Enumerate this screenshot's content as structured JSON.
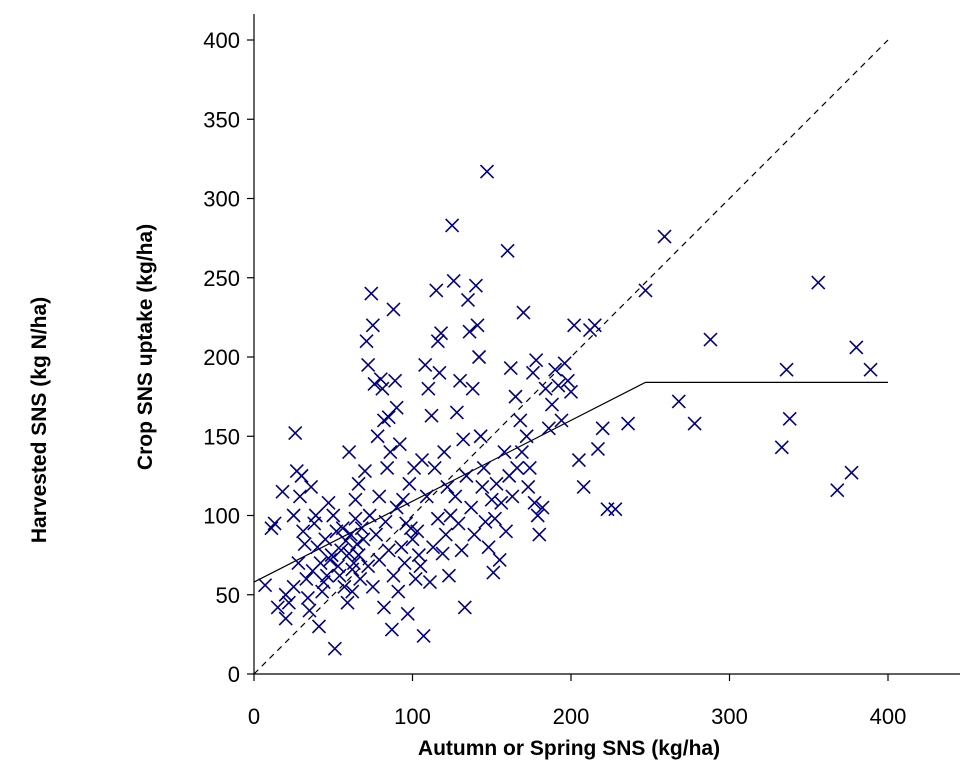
{
  "chart_data": {
    "type": "scatter",
    "title": "",
    "xlabel": "Autumn or Spring SNS (kg/ha)",
    "ylabel": "Crop SNS uptake (kg/ha)",
    "ylabel_outer": "Harvested SNS (kg N/ha)",
    "xlim": [
      0,
      450
    ],
    "ylim": [
      0,
      450
    ],
    "xticks": [
      0,
      100,
      200,
      300,
      400
    ],
    "yticks": [
      0,
      50,
      100,
      150,
      200,
      250,
      300,
      350,
      400
    ],
    "grid": false,
    "legend": "none",
    "marker_color": "#000080",
    "reference_lines": [
      {
        "style": "dashed",
        "points": [
          [
            0,
            0
          ],
          [
            400,
            400
          ]
        ]
      },
      {
        "style": "solid",
        "points": [
          [
            0,
            58
          ],
          [
            247,
            184
          ],
          [
            400,
            184
          ]
        ]
      }
    ],
    "series": [
      {
        "marker": "x",
        "points": [
          [
            7,
            56
          ],
          [
            11,
            92
          ],
          [
            13,
            95
          ],
          [
            15,
            42
          ],
          [
            18,
            115
          ],
          [
            20,
            50
          ],
          [
            22,
            45
          ],
          [
            25,
            100
          ],
          [
            26,
            152
          ],
          [
            27,
            128
          ],
          [
            29,
            112
          ],
          [
            30,
            125
          ],
          [
            31,
            90
          ],
          [
            33,
            60
          ],
          [
            35,
            40
          ],
          [
            36,
            118
          ],
          [
            38,
            95
          ],
          [
            40,
            80
          ],
          [
            42,
            70
          ],
          [
            43,
            52
          ],
          [
            45,
            85
          ],
          [
            46,
            62
          ],
          [
            48,
            72
          ],
          [
            50,
            100
          ],
          [
            52,
            90
          ],
          [
            53,
            68
          ],
          [
            55,
            78
          ],
          [
            56,
            92
          ],
          [
            57,
            55
          ],
          [
            58,
            84
          ],
          [
            60,
            76
          ],
          [
            61,
            88
          ],
          [
            62,
            66
          ],
          [
            63,
            70
          ],
          [
            64,
            98
          ],
          [
            65,
            82
          ],
          [
            66,
            75
          ],
          [
            67,
            60
          ],
          [
            68,
            92
          ],
          [
            70,
            128
          ],
          [
            71,
            210
          ],
          [
            72,
            195
          ],
          [
            74,
            240
          ],
          [
            75,
            220
          ],
          [
            76,
            183
          ],
          [
            78,
            150
          ],
          [
            79,
            112
          ],
          [
            80,
            186
          ],
          [
            81,
            180
          ],
          [
            82,
            160
          ],
          [
            84,
            130
          ],
          [
            85,
            162
          ],
          [
            86,
            140
          ],
          [
            88,
            230
          ],
          [
            89,
            185
          ],
          [
            90,
            168
          ],
          [
            92,
            145
          ],
          [
            94,
            110
          ],
          [
            96,
            95
          ],
          [
            98,
            120
          ],
          [
            100,
            85
          ],
          [
            102,
            60
          ],
          [
            104,
            75
          ],
          [
            106,
            135
          ],
          [
            108,
            195
          ],
          [
            110,
            180
          ],
          [
            112,
            163
          ],
          [
            114,
            130
          ],
          [
            115,
            242
          ],
          [
            116,
            210
          ],
          [
            117,
            190
          ],
          [
            118,
            215
          ],
          [
            120,
            140
          ],
          [
            122,
            118
          ],
          [
            124,
            100
          ],
          [
            125,
            283
          ],
          [
            126,
            248
          ],
          [
            128,
            165
          ],
          [
            130,
            185
          ],
          [
            132,
            148
          ],
          [
            134,
            125
          ],
          [
            135,
            236
          ],
          [
            136,
            216
          ],
          [
            138,
            180
          ],
          [
            140,
            245
          ],
          [
            141,
            220
          ],
          [
            142,
            200
          ],
          [
            143,
            150
          ],
          [
            145,
            130
          ],
          [
            147,
            317
          ],
          [
            150,
            110
          ],
          [
            152,
            98
          ],
          [
            155,
            72
          ],
          [
            158,
            140
          ],
          [
            160,
            267
          ],
          [
            162,
            193
          ],
          [
            165,
            175
          ],
          [
            168,
            160
          ],
          [
            170,
            228
          ],
          [
            172,
            150
          ],
          [
            174,
            130
          ],
          [
            176,
            190
          ],
          [
            178,
            198
          ],
          [
            180,
            88
          ],
          [
            182,
            105
          ],
          [
            184,
            180
          ],
          [
            186,
            155
          ],
          [
            188,
            170
          ],
          [
            190,
            192
          ],
          [
            192,
            182
          ],
          [
            194,
            160
          ],
          [
            196,
            196
          ],
          [
            198,
            185
          ],
          [
            200,
            178
          ],
          [
            202,
            220
          ],
          [
            205,
            135
          ],
          [
            208,
            118
          ],
          [
            212,
            217
          ],
          [
            215,
            220
          ],
          [
            217,
            142
          ],
          [
            220,
            155
          ],
          [
            223,
            104
          ],
          [
            228,
            104
          ],
          [
            236,
            158
          ],
          [
            247,
            242
          ],
          [
            259,
            276
          ],
          [
            268,
            172
          ],
          [
            278,
            158
          ],
          [
            288,
            211
          ],
          [
            333,
            143
          ],
          [
            336,
            192
          ],
          [
            338,
            161
          ],
          [
            356,
            247
          ],
          [
            368,
            116
          ],
          [
            377,
            127
          ],
          [
            380,
            206
          ],
          [
            389,
            192
          ],
          [
            20,
            35
          ],
          [
            25,
            55
          ],
          [
            28,
            70
          ],
          [
            32,
            82
          ],
          [
            34,
            48
          ],
          [
            37,
            65
          ],
          [
            39,
            100
          ],
          [
            41,
            30
          ],
          [
            44,
            58
          ],
          [
            47,
            108
          ],
          [
            49,
            75
          ],
          [
            51,
            16
          ],
          [
            54,
            62
          ],
          [
            59,
            45
          ],
          [
            60,
            140
          ],
          [
            62,
            52
          ],
          [
            64,
            110
          ],
          [
            66,
            120
          ],
          [
            69,
            85
          ],
          [
            72,
            68
          ],
          [
            73,
            100
          ],
          [
            75,
            55
          ],
          [
            77,
            88
          ],
          [
            79,
            72
          ],
          [
            82,
            42
          ],
          [
            83,
            96
          ],
          [
            85,
            78
          ],
          [
            87,
            28
          ],
          [
            88,
            62
          ],
          [
            90,
            105
          ],
          [
            91,
            52
          ],
          [
            93,
            80
          ],
          [
            95,
            70
          ],
          [
            97,
            38
          ],
          [
            99,
            92
          ],
          [
            101,
            130
          ],
          [
            103,
            90
          ],
          [
            105,
            68
          ],
          [
            107,
            24
          ],
          [
            109,
            112
          ],
          [
            111,
            58
          ],
          [
            113,
            80
          ],
          [
            116,
            98
          ],
          [
            119,
            76
          ],
          [
            121,
            88
          ],
          [
            123,
            62
          ],
          [
            127,
            112
          ],
          [
            129,
            95
          ],
          [
            131,
            78
          ],
          [
            133,
            42
          ],
          [
            137,
            105
          ],
          [
            139,
            88
          ],
          [
            144,
            118
          ],
          [
            146,
            96
          ],
          [
            148,
            80
          ],
          [
            151,
            64
          ],
          [
            153,
            120
          ],
          [
            156,
            108
          ],
          [
            159,
            90
          ],
          [
            161,
            125
          ],
          [
            163,
            112
          ],
          [
            166,
            130
          ],
          [
            169,
            140
          ],
          [
            173,
            118
          ],
          [
            177,
            108
          ],
          [
            179,
            100
          ]
        ]
      }
    ]
  }
}
